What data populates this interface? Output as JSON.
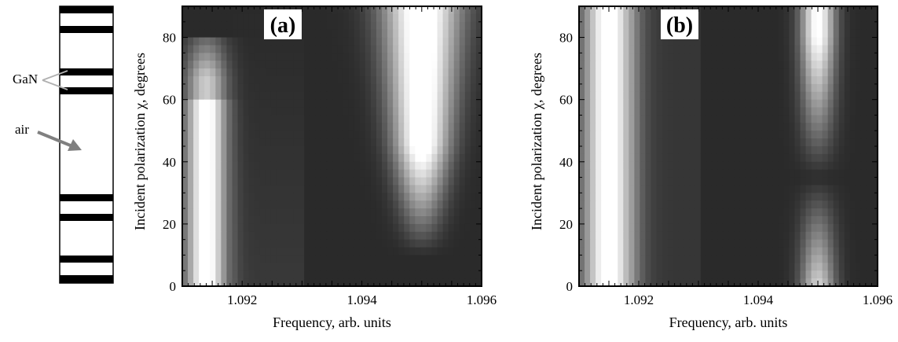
{
  "structure": {
    "labels": [
      {
        "text": "GaN"
      },
      {
        "text": "air"
      }
    ]
  },
  "chart_data": [
    {
      "type": "heatmap",
      "panel_label": "(a)",
      "xlabel": "Frequency, arb. units",
      "ylabel": "Incident polarization χ, degrees",
      "xlim": [
        1.091,
        1.096
      ],
      "ylim": [
        0,
        90
      ],
      "xticks": [
        "1.092",
        "1.094",
        "1.096"
      ],
      "yticks": [
        "0",
        "20",
        "40",
        "60",
        "80"
      ],
      "grid": false,
      "colormap": "grayscale (black = low, white = high)",
      "features": [
        {
          "center_x": 1.0914,
          "peak_intensity": 0.95,
          "y_from": 0,
          "y_to": 80
        },
        {
          "center_x": 1.095,
          "peak_intensity": 1.0,
          "y_from": 10,
          "y_to": 90
        }
      ]
    },
    {
      "type": "heatmap",
      "panel_label": "(b)",
      "xlabel": "Frequency, arb. units",
      "ylabel": "Incident polarization χ, degrees",
      "xlim": [
        1.091,
        1.096
      ],
      "ylim": [
        0,
        90
      ],
      "xticks": [
        "1.092",
        "1.094",
        "1.096"
      ],
      "yticks": [
        "0",
        "20",
        "40",
        "60",
        "80"
      ],
      "grid": false,
      "colormap": "grayscale (black = low, white = high)",
      "features": [
        {
          "center_x": 1.0915,
          "peak_intensity": 0.95,
          "y_from": 0,
          "y_to": 90
        },
        {
          "center_x": 1.095,
          "peak_intensity": 0.9,
          "y_from": 0,
          "y_to": 90,
          "minimum_at_y": 35
        }
      ]
    }
  ]
}
